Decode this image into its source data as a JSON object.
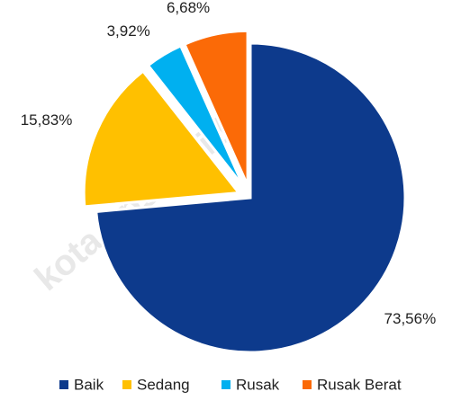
{
  "chart_data": {
    "type": "pie",
    "categories": [
      "Baik",
      "Sedang",
      "Rusak",
      "Rusak Berat"
    ],
    "values": [
      73.56,
      15.83,
      3.92,
      6.68
    ],
    "value_labels": [
      "73,56%",
      "15,83%",
      "3,92%",
      "6,68%"
    ],
    "colors": [
      "#0d3a8c",
      "#ffc000",
      "#00b0f0",
      "#fb6a07"
    ],
    "explode": [
      false,
      true,
      true,
      true
    ],
    "legend": "bottom",
    "watermark": "kota.bps.go.id"
  }
}
